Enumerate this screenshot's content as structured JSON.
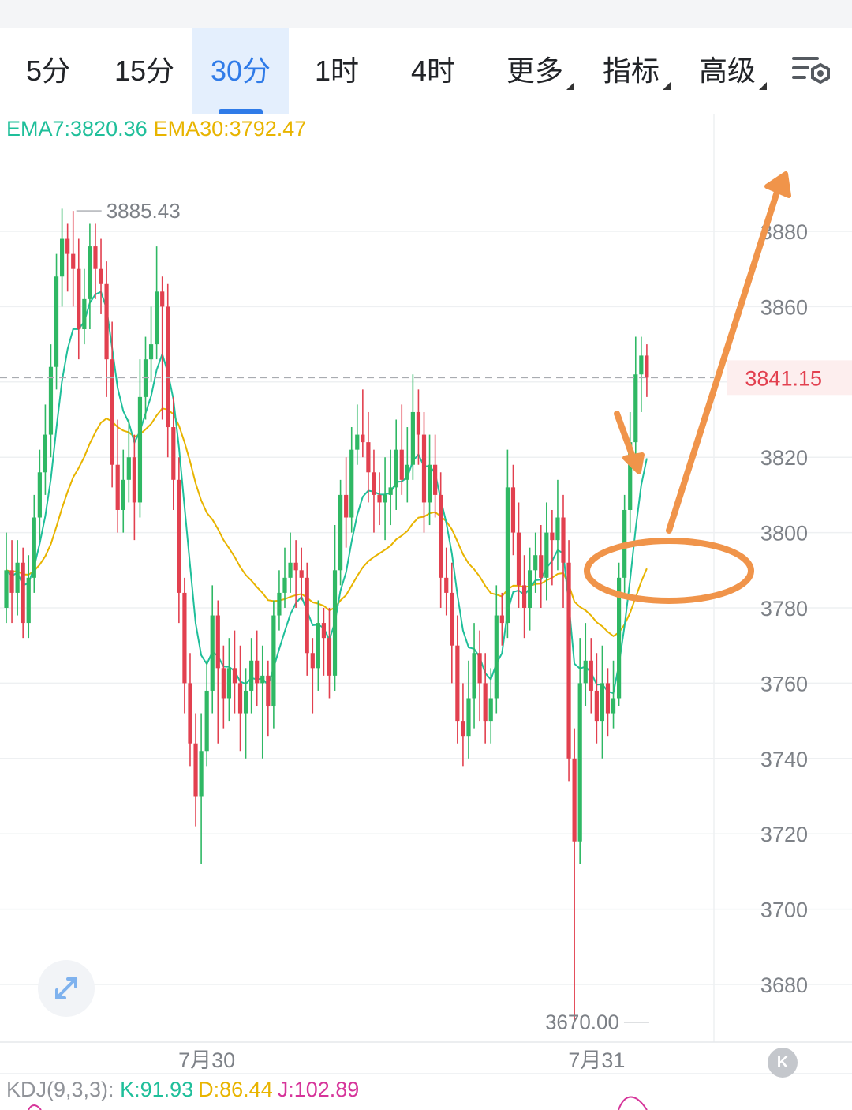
{
  "tabs": [
    {
      "label": "5分",
      "active": false
    },
    {
      "label": "15分",
      "active": false
    },
    {
      "label": "30分",
      "active": true
    },
    {
      "label": "1时",
      "active": false
    },
    {
      "label": "4时",
      "active": false
    },
    {
      "label": "更多",
      "active": false,
      "dropdown": true
    },
    {
      "label": "指标",
      "active": false,
      "dropdown": true
    },
    {
      "label": "高级",
      "active": false,
      "dropdown": true
    }
  ],
  "settings_icon": "chart-settings-icon",
  "ema_legend": {
    "ema7": "EMA7:3820.36",
    "ema30": "EMA30:3792.47"
  },
  "kdj_legend": {
    "title": "KDJ(9,3,3):",
    "k": "K:91.93",
    "d": "D:86.44",
    "j": "J:102.89"
  },
  "colors": {
    "up": "#2fb864",
    "down": "#e2404f",
    "ema7": "#1fbf9a",
    "ema30": "#e8b400",
    "annotation": "#f0944a",
    "active_tab": "#2f7be8"
  },
  "chart_data": {
    "type": "candlestick",
    "interval": "30分",
    "yticks": [
      3680,
      3700,
      3720,
      3740,
      3760,
      3780,
      3800,
      3820,
      3840,
      3860,
      3880
    ],
    "ytick_labels": [
      "3680",
      "3700",
      "3720",
      "3740",
      "3760",
      "3780",
      "3800",
      "3820",
      "3860",
      "3880"
    ],
    "ylim": [
      3661,
      3907
    ],
    "xticks": [
      {
        "label": "7月30",
        "index": 36
      },
      {
        "label": "7月31",
        "index": 106
      }
    ],
    "current_price": "3841.15",
    "max_label": {
      "text": "3885.43",
      "index": 12
    },
    "min_label": {
      "text": "3670.00",
      "index": 116
    },
    "candles": [
      [
        3780,
        3790,
        3800,
        3776
      ],
      [
        3790,
        3784,
        3798,
        3776
      ],
      [
        3784,
        3792,
        3798,
        3778
      ],
      [
        3792,
        3776,
        3796,
        3772
      ],
      [
        3776,
        3788,
        3794,
        3772
      ],
      [
        3788,
        3804,
        3810,
        3784
      ],
      [
        3804,
        3816,
        3822,
        3798
      ],
      [
        3816,
        3826,
        3834,
        3810
      ],
      [
        3826,
        3844,
        3850,
        3820
      ],
      [
        3844,
        3868,
        3874,
        3838
      ],
      [
        3868,
        3878,
        3886,
        3860
      ],
      [
        3878,
        3874,
        3882,
        3864
      ],
      [
        3874,
        3870,
        3885.43,
        3860
      ],
      [
        3870,
        3854,
        3878,
        3846
      ],
      [
        3854,
        3862,
        3870,
        3850
      ],
      [
        3862,
        3876,
        3882,
        3854
      ],
      [
        3876,
        3870,
        3882,
        3862
      ],
      [
        3870,
        3866,
        3878,
        3858
      ],
      [
        3866,
        3846,
        3872,
        3836
      ],
      [
        3846,
        3818,
        3856,
        3812
      ],
      [
        3818,
        3806,
        3830,
        3800
      ],
      [
        3806,
        3814,
        3822,
        3800
      ],
      [
        3814,
        3820,
        3830,
        3808
      ],
      [
        3820,
        3808,
        3826,
        3798
      ],
      [
        3808,
        3836,
        3846,
        3804
      ],
      [
        3836,
        3846,
        3852,
        3830
      ],
      [
        3846,
        3850,
        3860,
        3840
      ],
      [
        3850,
        3864,
        3876,
        3846
      ],
      [
        3864,
        3860,
        3868,
        3830
      ],
      [
        3860,
        3828,
        3866,
        3820
      ],
      [
        3828,
        3814,
        3836,
        3806
      ],
      [
        3814,
        3784,
        3820,
        3776
      ],
      [
        3784,
        3760,
        3788,
        3752
      ],
      [
        3760,
        3744,
        3768,
        3738
      ],
      [
        3744,
        3730,
        3752,
        3722
      ],
      [
        3730,
        3742,
        3752,
        3712
      ],
      [
        3742,
        3758,
        3766,
        3738
      ],
      [
        3758,
        3778,
        3786,
        3752
      ],
      [
        3778,
        3764,
        3782,
        3744
      ],
      [
        3764,
        3756,
        3770,
        3748
      ],
      [
        3756,
        3764,
        3772,
        3750
      ],
      [
        3764,
        3760,
        3774,
        3752
      ],
      [
        3760,
        3752,
        3770,
        3742
      ],
      [
        3752,
        3758,
        3764,
        3740
      ],
      [
        3758,
        3766,
        3772,
        3752
      ],
      [
        3766,
        3760,
        3774,
        3754
      ],
      [
        3760,
        3762,
        3770,
        3740
      ],
      [
        3762,
        3754,
        3766,
        3746
      ],
      [
        3754,
        3778,
        3782,
        3748
      ],
      [
        3778,
        3784,
        3790,
        3774
      ],
      [
        3784,
        3788,
        3796,
        3780
      ],
      [
        3788,
        3792,
        3800,
        3784
      ],
      [
        3792,
        3790,
        3798,
        3780
      ],
      [
        3790,
        3788,
        3796,
        3782
      ],
      [
        3788,
        3768,
        3792,
        3762
      ],
      [
        3768,
        3764,
        3772,
        3752
      ],
      [
        3764,
        3776,
        3782,
        3758
      ],
      [
        3776,
        3772,
        3780,
        3762
      ],
      [
        3772,
        3762,
        3780,
        3756
      ],
      [
        3762,
        3790,
        3802,
        3758
      ],
      [
        3790,
        3810,
        3814,
        3786
      ],
      [
        3810,
        3804,
        3820,
        3796
      ],
      [
        3804,
        3822,
        3828,
        3800
      ],
      [
        3822,
        3826,
        3834,
        3818
      ],
      [
        3826,
        3824,
        3838,
        3820
      ],
      [
        3824,
        3816,
        3832,
        3808
      ],
      [
        3816,
        3810,
        3822,
        3800
      ],
      [
        3810,
        3808,
        3816,
        3802
      ],
      [
        3808,
        3810,
        3820,
        3798
      ],
      [
        3810,
        3812,
        3822,
        3802
      ],
      [
        3812,
        3822,
        3830,
        3806
      ],
      [
        3822,
        3814,
        3834,
        3810
      ],
      [
        3814,
        3818,
        3828,
        3808
      ],
      [
        3818,
        3832,
        3842,
        3814
      ],
      [
        3832,
        3826,
        3838,
        3818
      ],
      [
        3826,
        3808,
        3832,
        3800
      ],
      [
        3808,
        3818,
        3826,
        3802
      ],
      [
        3818,
        3810,
        3826,
        3804
      ],
      [
        3810,
        3788,
        3816,
        3780
      ],
      [
        3788,
        3784,
        3796,
        3778
      ],
      [
        3784,
        3770,
        3792,
        3760
      ],
      [
        3770,
        3750,
        3778,
        3744
      ],
      [
        3750,
        3746,
        3760,
        3738
      ],
      [
        3746,
        3756,
        3766,
        3740
      ],
      [
        3756,
        3768,
        3776,
        3748
      ],
      [
        3768,
        3760,
        3774,
        3750
      ],
      [
        3760,
        3750,
        3768,
        3744
      ],
      [
        3750,
        3756,
        3764,
        3744
      ],
      [
        3756,
        3778,
        3786,
        3752
      ],
      [
        3778,
        3776,
        3784,
        3770
      ],
      [
        3776,
        3812,
        3822,
        3772
      ],
      [
        3812,
        3800,
        3818,
        3794
      ],
      [
        3800,
        3786,
        3808,
        3780
      ],
      [
        3786,
        3780,
        3794,
        3772
      ],
      [
        3780,
        3790,
        3796,
        3774
      ],
      [
        3790,
        3794,
        3800,
        3784
      ],
      [
        3794,
        3788,
        3802,
        3780
      ],
      [
        3788,
        3800,
        3808,
        3782
      ],
      [
        3800,
        3798,
        3806,
        3786
      ],
      [
        3798,
        3804,
        3814,
        3790
      ],
      [
        3804,
        3792,
        3810,
        3780
      ],
      [
        3792,
        3740,
        3798,
        3734
      ],
      [
        3740,
        3718,
        3748,
        3670
      ],
      [
        3718,
        3760,
        3772,
        3712
      ],
      [
        3760,
        3766,
        3776,
        3754
      ],
      [
        3766,
        3758,
        3772,
        3752
      ],
      [
        3758,
        3750,
        3768,
        3744
      ],
      [
        3750,
        3760,
        3770,
        3740
      ],
      [
        3760,
        3752,
        3764,
        3746
      ],
      [
        3752,
        3756,
        3766,
        3748
      ],
      [
        3756,
        3788,
        3792,
        3754
      ],
      [
        3788,
        3806,
        3810,
        3784
      ],
      [
        3806,
        3824,
        3832,
        3800
      ],
      [
        3824,
        3842,
        3852,
        3818
      ],
      [
        3842,
        3847,
        3852,
        3832
      ],
      [
        3847,
        3841.15,
        3850,
        3836
      ]
    ]
  }
}
